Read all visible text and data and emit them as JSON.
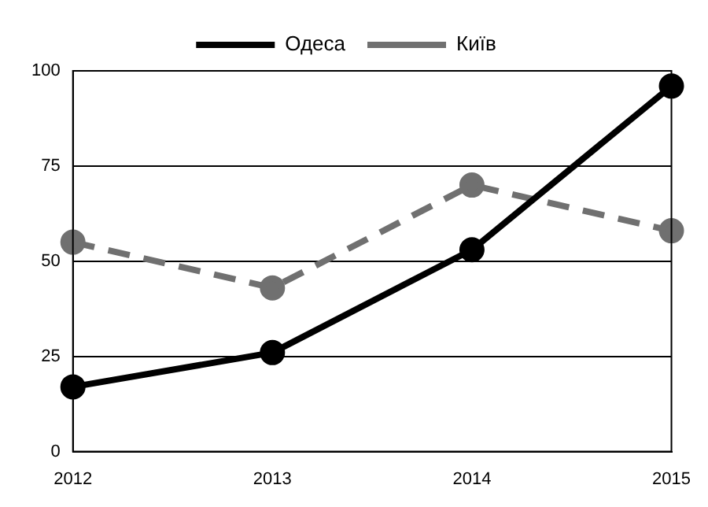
{
  "chart_data": {
    "type": "line",
    "categories": [
      "2012",
      "2013",
      "2014",
      "2015"
    ],
    "series": [
      {
        "name": "Одеса",
        "color": "#000000",
        "values": [
          17,
          26,
          53,
          96
        ],
        "line_style": "solid"
      },
      {
        "name": "Київ",
        "color": "#707070",
        "values": [
          55,
          43,
          70,
          58
        ],
        "line_style": "dashed"
      }
    ],
    "ylim": [
      0,
      100
    ],
    "yticks": [
      0,
      25,
      50,
      75,
      100
    ],
    "grid": "y",
    "legend": "top",
    "marker": "circle"
  }
}
